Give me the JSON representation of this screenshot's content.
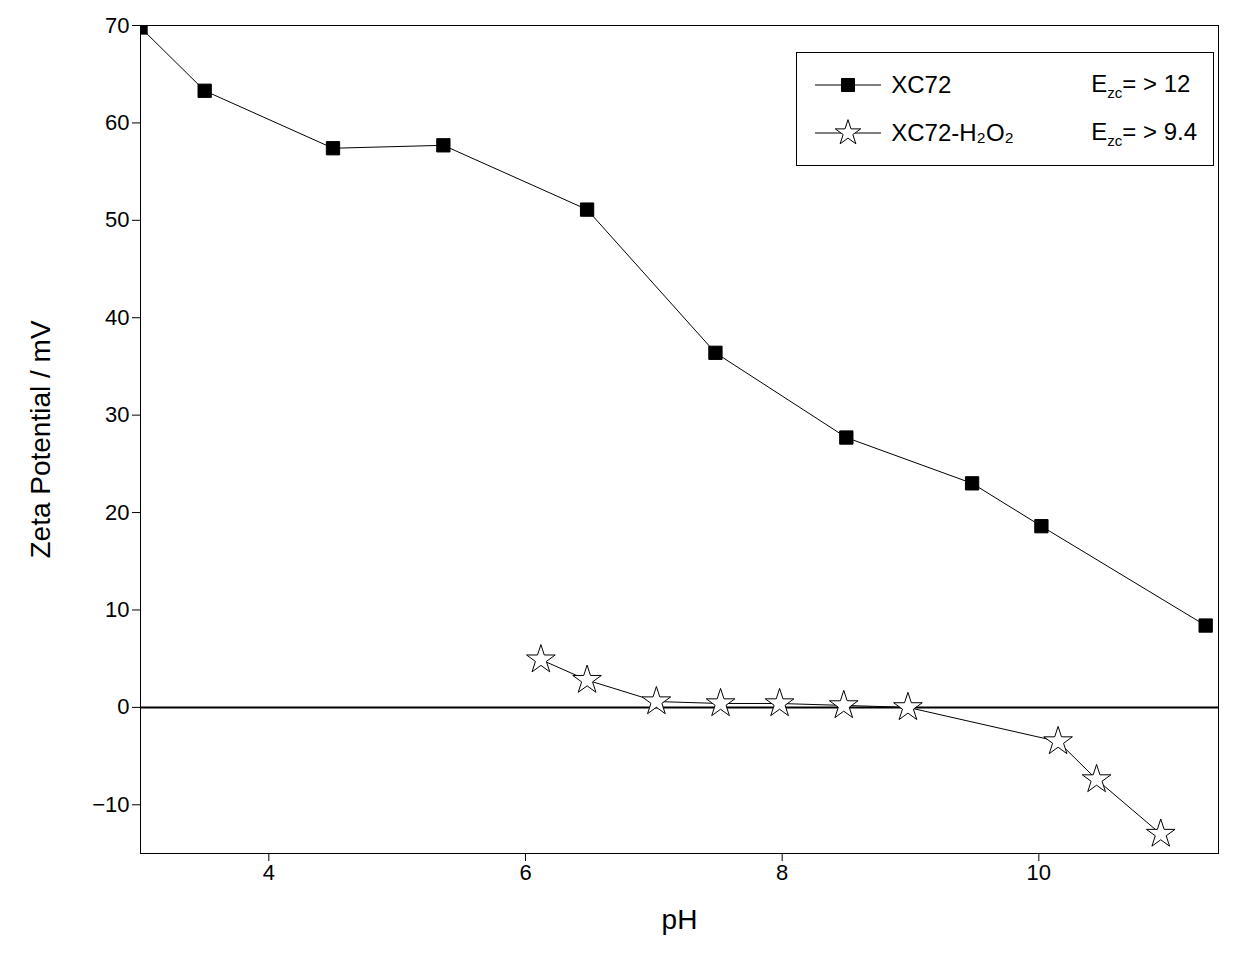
{
  "chart_data": {
    "type": "line",
    "x_label": "pH",
    "y_label": "Zeta Potential / mV",
    "xlim": [
      3,
      11.4
    ],
    "xticks": [
      4,
      6,
      8,
      10
    ],
    "ylim": [
      -15,
      70
    ],
    "yticks": [
      -10,
      0,
      10,
      20,
      30,
      40,
      50,
      60,
      70
    ],
    "legend": "top-right",
    "series": [
      {
        "name": "XC72",
        "color": "#000000",
        "marker": "square",
        "annotation": {
          "text": "E",
          "sub": "zc",
          "rest": "= > 12"
        },
        "x": [
          3.0,
          3.5,
          4.5,
          5.36,
          6.48,
          7.48,
          8.5,
          9.48,
          10.02,
          11.3
        ],
        "values": [
          69.8,
          63.3,
          57.4,
          57.7,
          51.1,
          36.4,
          27.7,
          23.0,
          18.6,
          8.4
        ]
      },
      {
        "name": "XC72-H₂O₂",
        "color": "#000000",
        "marker": "star",
        "annotation": {
          "text": "E",
          "sub": "zc",
          "rest": "= > 9.4"
        },
        "x": [
          6.12,
          6.48,
          7.02,
          7.52,
          7.98,
          8.48,
          8.98,
          10.15,
          10.45,
          10.95
        ],
        "values": [
          4.9,
          2.8,
          0.6,
          0.4,
          0.4,
          0.2,
          0.0,
          -3.5,
          -7.4,
          -13.0
        ]
      }
    ]
  }
}
